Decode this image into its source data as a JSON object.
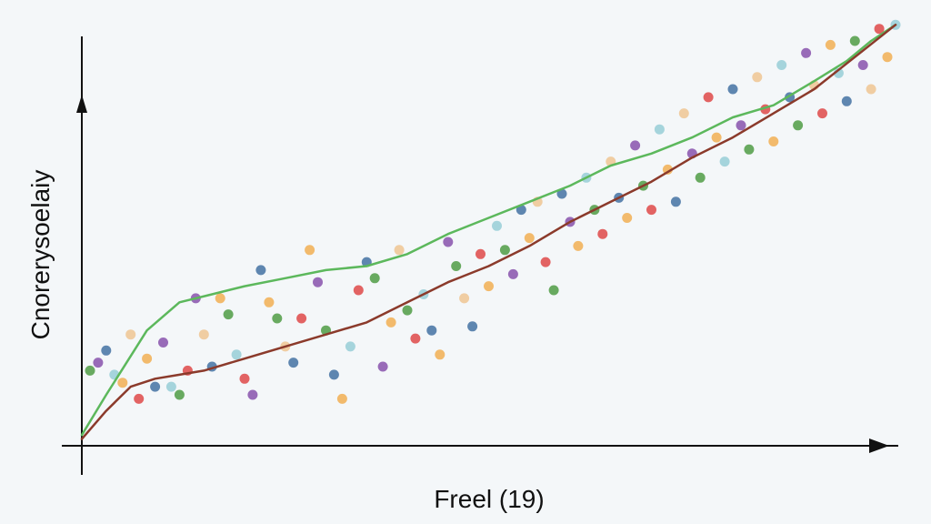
{
  "chart_data": {
    "type": "scatter",
    "title": "",
    "xlabel": "Freel (19)",
    "ylabel": "Cnorerysoelaiy",
    "xlim": [
      0,
      100
    ],
    "ylim": [
      0,
      100
    ],
    "grid": false,
    "legend": "none",
    "colors": {
      "background": "#f4f7f9",
      "axis": "#111111",
      "green_line": "#5cb85c",
      "brown_line": "#8b3a2b",
      "points": [
        "#e05252",
        "#4e79a7",
        "#59a14f",
        "#f2b25c",
        "#8e5bb0",
        "#9ccfd8",
        "#f0c898"
      ]
    },
    "series": [
      {
        "name": "green-trend",
        "kind": "line",
        "color": "#5cb85c",
        "x": [
          0,
          3,
          8,
          12,
          16,
          20,
          25,
          30,
          35,
          40,
          45,
          50,
          55,
          60,
          65,
          70,
          75,
          80,
          85,
          90,
          94,
          97,
          100
        ],
        "y": [
          2,
          12,
          28,
          35,
          37,
          39,
          41,
          43,
          44,
          47,
          52,
          56,
          60,
          64,
          69,
          72,
          76,
          81,
          84,
          90,
          95,
          100,
          104
        ]
      },
      {
        "name": "brown-trend",
        "kind": "line",
        "color": "#8b3a2b",
        "x": [
          0,
          3,
          6,
          9,
          12,
          15,
          20,
          25,
          30,
          35,
          40,
          45,
          50,
          55,
          60,
          65,
          70,
          75,
          80,
          85,
          90,
          95,
          100
        ],
        "y": [
          1,
          8,
          14,
          16,
          17,
          18,
          21,
          24,
          27,
          30,
          35,
          40,
          44,
          49,
          55,
          60,
          65,
          71,
          76,
          82,
          88,
          96,
          104
        ]
      },
      {
        "name": "points",
        "kind": "scatter",
        "points": [
          [
            1,
            18,
            2
          ],
          [
            2,
            20,
            4
          ],
          [
            3,
            23,
            1
          ],
          [
            4,
            17,
            5
          ],
          [
            5,
            15,
            3
          ],
          [
            6,
            27,
            6
          ],
          [
            7,
            11,
            0
          ],
          [
            8,
            21,
            3
          ],
          [
            9,
            14,
            1
          ],
          [
            10,
            25,
            4
          ],
          [
            11,
            14,
            5
          ],
          [
            12,
            12,
            2
          ],
          [
            13,
            18,
            0
          ],
          [
            14,
            36,
            4
          ],
          [
            15,
            27,
            6
          ],
          [
            16,
            19,
            1
          ],
          [
            17,
            36,
            3
          ],
          [
            18,
            32,
            2
          ],
          [
            19,
            22,
            5
          ],
          [
            20,
            16,
            0
          ],
          [
            21,
            12,
            4
          ],
          [
            22,
            43,
            1
          ],
          [
            23,
            35,
            3
          ],
          [
            24,
            31,
            2
          ],
          [
            25,
            24,
            6
          ],
          [
            26,
            20,
            1
          ],
          [
            27,
            31,
            0
          ],
          [
            28,
            48,
            3
          ],
          [
            29,
            40,
            4
          ],
          [
            30,
            28,
            2
          ],
          [
            31,
            17,
            1
          ],
          [
            32,
            11,
            3
          ],
          [
            33,
            24,
            5
          ],
          [
            34,
            38,
            0
          ],
          [
            35,
            45,
            1
          ],
          [
            36,
            41,
            2
          ],
          [
            37,
            19,
            4
          ],
          [
            38,
            30,
            3
          ],
          [
            39,
            48,
            6
          ],
          [
            40,
            33,
            2
          ],
          [
            41,
            26,
            0
          ],
          [
            42,
            37,
            5
          ],
          [
            43,
            28,
            1
          ],
          [
            44,
            22,
            3
          ],
          [
            45,
            50,
            4
          ],
          [
            46,
            44,
            2
          ],
          [
            47,
            36,
            6
          ],
          [
            48,
            29,
            1
          ],
          [
            49,
            47,
            0
          ],
          [
            50,
            39,
            3
          ],
          [
            51,
            54,
            5
          ],
          [
            52,
            48,
            2
          ],
          [
            53,
            42,
            4
          ],
          [
            54,
            58,
            1
          ],
          [
            55,
            51,
            3
          ],
          [
            56,
            60,
            6
          ],
          [
            57,
            45,
            0
          ],
          [
            58,
            38,
            2
          ],
          [
            59,
            62,
            1
          ],
          [
            60,
            55,
            4
          ],
          [
            61,
            49,
            3
          ],
          [
            62,
            66,
            5
          ],
          [
            63,
            58,
            2
          ],
          [
            64,
            52,
            0
          ],
          [
            65,
            70,
            6
          ],
          [
            66,
            61,
            1
          ],
          [
            67,
            56,
            3
          ],
          [
            68,
            74,
            4
          ],
          [
            69,
            64,
            2
          ],
          [
            70,
            58,
            0
          ],
          [
            71,
            78,
            5
          ],
          [
            72,
            68,
            3
          ],
          [
            73,
            60,
            1
          ],
          [
            74,
            82,
            6
          ],
          [
            75,
            72,
            4
          ],
          [
            76,
            66,
            2
          ],
          [
            77,
            86,
            0
          ],
          [
            78,
            76,
            3
          ],
          [
            79,
            70,
            5
          ],
          [
            80,
            88,
            1
          ],
          [
            81,
            79,
            4
          ],
          [
            82,
            73,
            2
          ],
          [
            83,
            91,
            6
          ],
          [
            84,
            83,
            0
          ],
          [
            85,
            75,
            3
          ],
          [
            86,
            94,
            5
          ],
          [
            87,
            86,
            1
          ],
          [
            88,
            79,
            2
          ],
          [
            89,
            97,
            4
          ],
          [
            90,
            89,
            6
          ],
          [
            91,
            82,
            0
          ],
          [
            92,
            99,
            3
          ],
          [
            93,
            92,
            5
          ],
          [
            94,
            85,
            1
          ],
          [
            95,
            100,
            2
          ],
          [
            96,
            94,
            4
          ],
          [
            97,
            88,
            6
          ],
          [
            98,
            103,
            0
          ],
          [
            99,
            96,
            3
          ],
          [
            100,
            104,
            5
          ]
        ]
      }
    ]
  }
}
